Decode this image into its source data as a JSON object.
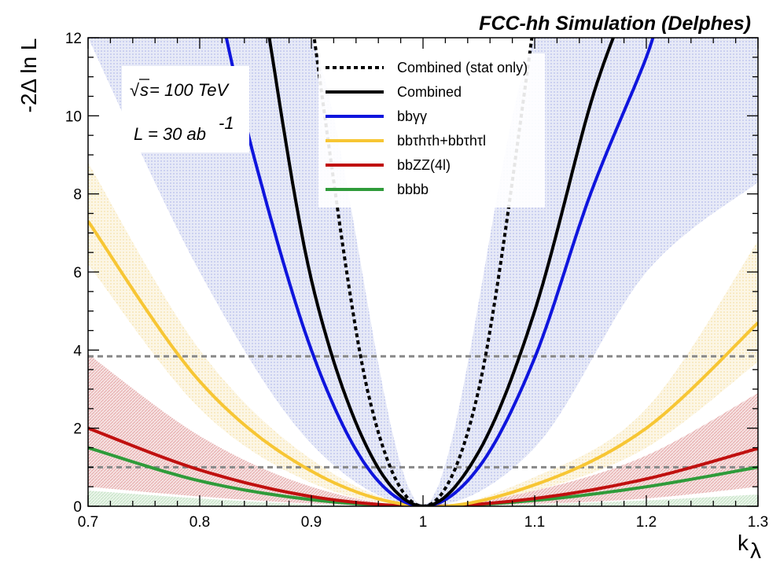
{
  "chart_data": {
    "type": "line",
    "title": "FCC-hh Simulation (Delphes)",
    "xlabel": "k",
    "xlabel_sub": "λ",
    "ylabel": "-2Δ ln L",
    "xlim": [
      0.7,
      1.3
    ],
    "ylim": [
      0,
      12
    ],
    "x_ticks": [
      "0.7",
      "0.8",
      "0.9",
      "1",
      "1.1",
      "1.2",
      "1.3"
    ],
    "y_ticks": [
      "0",
      "2",
      "4",
      "6",
      "8",
      "10",
      "12"
    ],
    "grid": false,
    "legend_position": "top-center",
    "annotations": {
      "sqrt": "√",
      "sqrt_s_label": "s",
      "sqrt_s_value": " = 100 TeV",
      "lumi_label": "L = 30 ab",
      "lumi_exp": "-1"
    },
    "reference_lines": [
      1,
      3.84
    ],
    "series": [
      {
        "name": "Combined (stat only)",
        "key": "stat",
        "color": "#000000",
        "style": "dotted",
        "x": [
          0.9,
          0.95,
          1.0,
          1.05,
          1.1
        ],
        "y": [
          12.5,
          3.0,
          0,
          3.0,
          12.5
        ]
      },
      {
        "name": "Combined",
        "key": "comb",
        "color": "#000000",
        "style": "solid",
        "x": [
          0.86,
          0.9,
          0.95,
          1.0,
          1.05,
          1.1,
          1.15,
          1.18
        ],
        "y": [
          12.4,
          5.8,
          1.5,
          0,
          1.4,
          5.0,
          10.3,
          12.7
        ]
      },
      {
        "name": "bbγγ",
        "key": "bbgg",
        "color": "#0f15dd",
        "style": "solid",
        "x": [
          0.82,
          0.85,
          0.9,
          0.95,
          1.0,
          1.05,
          1.1,
          1.15,
          1.2,
          1.21
        ],
        "y": [
          12.5,
          8.8,
          4.0,
          1.0,
          0,
          1.0,
          3.8,
          8.0,
          11.5,
          12.6
        ]
      },
      {
        "name": "bbτhτh+bbτhτl",
        "key": "bbtt",
        "color": "#f7c634",
        "style": "solid",
        "x": [
          0.7,
          0.8,
          0.9,
          1.0,
          1.1,
          1.2,
          1.3
        ],
        "y": [
          7.3,
          3.2,
          0.9,
          0,
          0.55,
          2.0,
          4.7
        ]
      },
      {
        "name": "bbZZ(4l)",
        "key": "bbzz",
        "color": "#c0100f",
        "style": "solid",
        "x": [
          0.7,
          0.8,
          0.9,
          1.0,
          1.1,
          1.2,
          1.3
        ],
        "y": [
          2.0,
          0.93,
          0.25,
          0,
          0.2,
          0.7,
          1.48
        ]
      },
      {
        "name": "bbbb",
        "key": "bbbb",
        "color": "#2f9b3a",
        "style": "solid",
        "x": [
          0.7,
          0.8,
          0.9,
          1.0,
          1.1,
          1.2,
          1.3
        ],
        "y": [
          1.5,
          0.65,
          0.17,
          0,
          0.15,
          0.5,
          1.0
        ]
      }
    ],
    "bands": [
      {
        "series": "bbgg",
        "color": "#aab4e6",
        "x": [
          0.7,
          0.8,
          0.9,
          1.0,
          1.1,
          1.2,
          1.3
        ],
        "y_low": [
          12,
          6.0,
          1.6,
          0,
          1.5,
          6.0,
          8.3
        ],
        "y_high": [
          12,
          12,
          12,
          0,
          12,
          12,
          12
        ]
      },
      {
        "series": "bbtt",
        "color": "#f7e4b0",
        "x": [
          0.7,
          0.8,
          0.9,
          1.0,
          1.1,
          1.2,
          1.3
        ],
        "y_low": [
          6.2,
          2.5,
          0.6,
          0,
          0.4,
          1.5,
          3.7
        ],
        "y_high": [
          8.8,
          4.0,
          1.2,
          0,
          0.75,
          2.5,
          6.8
        ]
      },
      {
        "series": "bbzz",
        "color": "#e6a0a0",
        "x": [
          0.7,
          0.8,
          0.9,
          1.0,
          1.1,
          1.2,
          1.3
        ],
        "y_low": [
          0.5,
          0.25,
          0.07,
          0,
          0.06,
          0.2,
          0.5
        ],
        "y_high": [
          3.9,
          1.8,
          0.5,
          0,
          0.4,
          1.3,
          2.9
        ]
      },
      {
        "series": "bbbb",
        "color": "#bfe0c0",
        "x": [
          0.7,
          0.8,
          0.9,
          1.0,
          1.1,
          1.2,
          1.3
        ],
        "y_low": [
          0.0,
          0.0,
          0.0,
          0,
          0.0,
          0.0,
          0.0
        ],
        "y_high": [
          0.4,
          0.2,
          0.05,
          0,
          0.05,
          0.15,
          0.3
        ]
      }
    ]
  }
}
